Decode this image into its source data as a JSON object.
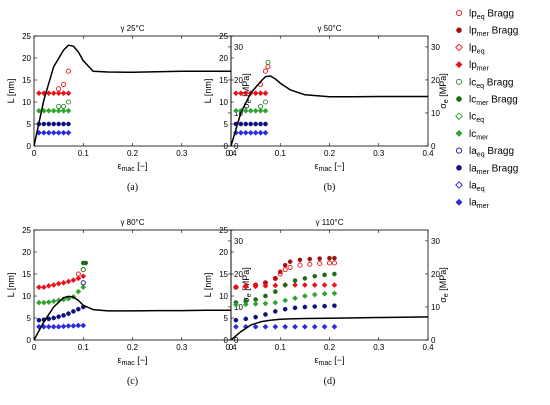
{
  "legend": [
    {
      "main": "lp",
      "sub": "eq",
      "suffix": " Bragg",
      "color": "#e8141a",
      "marker": "circle-open"
    },
    {
      "main": "lp",
      "sub": "mer",
      "suffix": " Bragg",
      "color": "#9a1414",
      "marker": "circle-filled"
    },
    {
      "main": "lp",
      "sub": "eq",
      "suffix": "",
      "color": "#e8141a",
      "marker": "diamond-open"
    },
    {
      "main": "lp",
      "sub": "mer",
      "suffix": "",
      "color": "#e8141a",
      "marker": "diamond-filled"
    },
    {
      "main": "lc",
      "sub": "eq",
      "suffix": " Bragg",
      "color": "#2e8b2e",
      "marker": "circle-open"
    },
    {
      "main": "lc",
      "sub": "mer",
      "suffix": " Bragg",
      "color": "#1a6b1a",
      "marker": "circle-filled"
    },
    {
      "main": "lc",
      "sub": "eq",
      "suffix": "",
      "color": "#2fa52f",
      "marker": "diamond-open"
    },
    {
      "main": "lc",
      "sub": "mer",
      "suffix": "",
      "color": "#2fa52f",
      "marker": "diamond-filled"
    },
    {
      "main": "la",
      "sub": "eq",
      "suffix": " Bragg",
      "color": "#1a1aa0",
      "marker": "circle-open"
    },
    {
      "main": "la",
      "sub": "mer",
      "suffix": " Bragg",
      "color": "#101080",
      "marker": "circle-filled"
    },
    {
      "main": "la",
      "sub": "eq",
      "suffix": "",
      "color": "#2a2ae0",
      "marker": "diamond-open"
    },
    {
      "main": "la",
      "sub": "mer",
      "suffix": "",
      "color": "#2a2ae0",
      "marker": "diamond-filled"
    }
  ],
  "chart_data": [
    {
      "type": "scatter",
      "title": "γ 25°C",
      "caption": "(a)",
      "ylabel": "L [nm]",
      "y2label": {
        "main": "σ",
        "sub": "e",
        "suffix": " [MPa]"
      },
      "xlabel": {
        "main": "ε",
        "sub": "mac",
        "suffix": " [−]"
      },
      "xlim": [
        0,
        0.4
      ],
      "ylim": [
        0,
        25
      ],
      "y2lim": [
        0,
        33.3
      ],
      "xticks": [
        "0",
        "0.1",
        "0.2",
        "0.3",
        "0.4"
      ],
      "yticks": [
        "0",
        "5",
        "10",
        "15",
        "20",
        "25"
      ],
      "y2ticks": [
        "0",
        "10",
        "20",
        "30"
      ],
      "series": [
        {
          "color": "#e8141a",
          "marker": "diamond-filled",
          "x": [
            0.01,
            0.02,
            0.03,
            0.04,
            0.05,
            0.06,
            0.07
          ],
          "y": [
            12,
            12,
            12,
            12,
            12,
            12,
            12
          ]
        },
        {
          "color": "#e8141a",
          "marker": "circle-open",
          "x": [
            0.05,
            0.06,
            0.07
          ],
          "y": [
            13,
            14,
            17
          ]
        },
        {
          "color": "#2fa52f",
          "marker": "diamond-filled",
          "x": [
            0.01,
            0.02,
            0.03,
            0.04,
            0.05,
            0.06,
            0.07
          ],
          "y": [
            8,
            8,
            8,
            8,
            8,
            8,
            8
          ]
        },
        {
          "color": "#2e8b2e",
          "marker": "circle-open",
          "x": [
            0.05,
            0.06,
            0.07
          ],
          "y": [
            9,
            9,
            10
          ]
        },
        {
          "color": "#101080",
          "marker": "circle-filled",
          "x": [
            0.01,
            0.02,
            0.03,
            0.04,
            0.05,
            0.06,
            0.07
          ],
          "y": [
            5,
            5,
            5,
            5,
            5,
            5,
            5
          ]
        },
        {
          "color": "#2a2ae0",
          "marker": "diamond-filled",
          "x": [
            0.01,
            0.02,
            0.03,
            0.04,
            0.05,
            0.06,
            0.07
          ],
          "y": [
            3,
            3,
            3,
            3,
            3,
            3,
            3
          ]
        }
      ],
      "stress_curve": {
        "x": [
          0,
          0.02,
          0.04,
          0.06,
          0.07,
          0.08,
          0.09,
          0.1,
          0.12,
          0.15,
          0.2,
          0.25,
          0.3,
          0.35,
          0.4
        ],
        "y": [
          0,
          14,
          24,
          29,
          30.5,
          30.2,
          28.5,
          25.8,
          22.6,
          22.4,
          22.3,
          22.5,
          22.6,
          22.6,
          22.6
        ]
      }
    },
    {
      "type": "scatter",
      "title": "γ 50°C",
      "caption": "(b)",
      "ylabel": "L [nm]",
      "y2label": {
        "main": "σ",
        "sub": "e",
        "suffix": " [MPa]"
      },
      "xlabel": {
        "main": "ε",
        "sub": "mac",
        "suffix": " [−]"
      },
      "xlim": [
        0,
        0.4
      ],
      "ylim": [
        0,
        25
      ],
      "y2lim": [
        0,
        33.3
      ],
      "xticks": [
        "0",
        "0.1",
        "0.2",
        "0.3",
        "0.4"
      ],
      "yticks": [
        "0",
        "5",
        "10",
        "15",
        "20",
        "25"
      ],
      "y2ticks": [
        "0",
        "10",
        "20",
        "30"
      ],
      "series": [
        {
          "color": "#e8141a",
          "marker": "diamond-filled",
          "x": [
            0.01,
            0.02,
            0.03,
            0.04,
            0.05,
            0.06,
            0.07
          ],
          "y": [
            12,
            12,
            12,
            12,
            12,
            12,
            12
          ]
        },
        {
          "color": "#e8141a",
          "marker": "circle-open",
          "x": [
            0.06,
            0.07,
            0.075
          ],
          "y": [
            14,
            17,
            18
          ]
        },
        {
          "color": "#2fa52f",
          "marker": "diamond-filled",
          "x": [
            0.01,
            0.02,
            0.03,
            0.04,
            0.05,
            0.06,
            0.07
          ],
          "y": [
            8,
            8,
            8,
            8,
            8,
            8,
            8
          ]
        },
        {
          "color": "#2e8b2e",
          "marker": "circle-open",
          "x": [
            0.06,
            0.07,
            0.075
          ],
          "y": [
            9,
            10,
            19
          ]
        },
        {
          "color": "#101080",
          "marker": "circle-filled",
          "x": [
            0.01,
            0.02,
            0.03,
            0.04,
            0.05,
            0.06,
            0.07
          ],
          "y": [
            5,
            5,
            5,
            5,
            5,
            5,
            5
          ]
        },
        {
          "color": "#2a2ae0",
          "marker": "diamond-filled",
          "x": [
            0.01,
            0.02,
            0.03,
            0.04,
            0.05,
            0.06,
            0.07
          ],
          "y": [
            3,
            3,
            3,
            3,
            3,
            3,
            3
          ]
        }
      ],
      "stress_curve": {
        "x": [
          0,
          0.02,
          0.04,
          0.06,
          0.07,
          0.08,
          0.09,
          0.1,
          0.12,
          0.15,
          0.2,
          0.25,
          0.3,
          0.35,
          0.4
        ],
        "y": [
          0,
          10,
          16,
          19.5,
          21,
          21.2,
          20.3,
          19,
          17,
          15.5,
          14.9,
          14.9,
          15,
          15,
          15
        ]
      }
    },
    {
      "type": "scatter",
      "title": "γ 80°C",
      "caption": "(c)",
      "ylabel": "L [nm]",
      "y2label": {
        "main": "σ",
        "sub": "e",
        "suffix": " [MPa]"
      },
      "xlabel": {
        "main": "ε",
        "sub": "mac",
        "suffix": " [−]"
      },
      "xlim": [
        0,
        0.4
      ],
      "ylim": [
        0,
        25
      ],
      "y2lim": [
        0,
        33.3
      ],
      "xticks": [
        "0",
        "0.1",
        "0.2",
        "0.3",
        "0.4"
      ],
      "yticks": [
        "0",
        "5",
        "10",
        "15",
        "20",
        "25"
      ],
      "y2ticks": [
        "0",
        "10",
        "20",
        "30"
      ],
      "series": [
        {
          "color": "#e8141a",
          "marker": "diamond-filled",
          "x": [
            0.01,
            0.02,
            0.03,
            0.04,
            0.05,
            0.06,
            0.07,
            0.08,
            0.09,
            0.1
          ],
          "y": [
            12,
            12,
            12.3,
            12.5,
            12.8,
            13,
            13.3,
            13.6,
            14,
            14.5
          ]
        },
        {
          "color": "#e8141a",
          "marker": "circle-open",
          "x": [
            0.09,
            0.1
          ],
          "y": [
            15,
            16
          ]
        },
        {
          "color": "#2fa52f",
          "marker": "diamond-filled",
          "x": [
            0.01,
            0.02,
            0.03,
            0.04,
            0.05,
            0.06,
            0.07,
            0.08,
            0.09,
            0.1
          ],
          "y": [
            8.5,
            8.5,
            8.6,
            8.8,
            9,
            9.2,
            9.4,
            9.8,
            11,
            12
          ]
        },
        {
          "color": "#1a6b1a",
          "marker": "circle-filled",
          "x": [
            0.1,
            0.105
          ],
          "y": [
            17.5,
            17.5
          ]
        },
        {
          "color": "#2e8b2e",
          "marker": "circle-open",
          "x": [
            0.1
          ],
          "y": [
            16
          ]
        },
        {
          "color": "#101080",
          "marker": "circle-filled",
          "x": [
            0.01,
            0.02,
            0.03,
            0.04,
            0.05,
            0.06,
            0.07,
            0.08,
            0.09,
            0.1
          ],
          "y": [
            4.5,
            4.6,
            4.8,
            5,
            5.3,
            5.6,
            6,
            6.5,
            7,
            7.5
          ]
        },
        {
          "color": "#101080",
          "marker": "circle-open",
          "x": [
            0.1
          ],
          "y": [
            13
          ]
        },
        {
          "color": "#2a2ae0",
          "marker": "diamond-filled",
          "x": [
            0.01,
            0.02,
            0.03,
            0.04,
            0.05,
            0.06,
            0.07,
            0.08,
            0.09,
            0.1
          ],
          "y": [
            3,
            3,
            3,
            3,
            3,
            3.1,
            3.2,
            3.2,
            3.3,
            3.3
          ]
        }
      ],
      "stress_curve": {
        "x": [
          0,
          0.02,
          0.04,
          0.06,
          0.07,
          0.08,
          0.09,
          0.1,
          0.12,
          0.15,
          0.2,
          0.25,
          0.3,
          0.35,
          0.4
        ],
        "y": [
          0,
          5.5,
          10,
          12.8,
          13.2,
          13,
          12,
          10.5,
          9.2,
          8.8,
          8.8,
          8.9,
          8.9,
          9,
          9
        ]
      }
    },
    {
      "type": "scatter",
      "title": "γ 110°C",
      "caption": "(d)",
      "ylabel": "L [nm]",
      "y2label": {
        "main": "σ",
        "sub": "e",
        "suffix": " [MPa]"
      },
      "xlabel": {
        "main": "ε",
        "sub": "mac",
        "suffix": " [−]"
      },
      "xlim": [
        0,
        0.4
      ],
      "ylim": [
        0,
        25
      ],
      "y2lim": [
        0,
        33.3
      ],
      "xticks": [
        "0",
        "0.1",
        "0.2",
        "0.3",
        "0.4"
      ],
      "yticks": [
        "0",
        "5",
        "10",
        "15",
        "20",
        "25"
      ],
      "y2ticks": [
        "0",
        "10",
        "20",
        "30"
      ],
      "series": [
        {
          "color": "#9a1414",
          "marker": "circle-filled",
          "x": [
            0.01,
            0.03,
            0.05,
            0.07,
            0.09,
            0.1,
            0.11,
            0.12,
            0.14,
            0.16,
            0.18,
            0.2,
            0.21
          ],
          "y": [
            12,
            12.2,
            12.5,
            13,
            14,
            15.5,
            17,
            17.8,
            18.2,
            18.4,
            18.5,
            18.6,
            18.6
          ]
        },
        {
          "color": "#e8141a",
          "marker": "circle-open",
          "x": [
            0.01,
            0.03,
            0.05,
            0.07,
            0.09,
            0.1,
            0.11,
            0.12,
            0.14,
            0.16,
            0.18,
            0.2,
            0.21
          ],
          "y": [
            12,
            12.2,
            12.5,
            13,
            14,
            15,
            16,
            16.5,
            17,
            17.2,
            17.4,
            17.5,
            17.5
          ]
        },
        {
          "color": "#e8141a",
          "marker": "diamond-filled",
          "x": [
            0.01,
            0.03,
            0.05,
            0.07,
            0.09,
            0.11,
            0.13,
            0.15,
            0.17,
            0.19,
            0.21
          ],
          "y": [
            12,
            12.1,
            12.2,
            12.3,
            12.4,
            12.5,
            12.5,
            12.5,
            12.5,
            12.5,
            12.5
          ]
        },
        {
          "color": "#1a6b1a",
          "marker": "circle-filled",
          "x": [
            0.01,
            0.03,
            0.05,
            0.07,
            0.09,
            0.11,
            0.13,
            0.15,
            0.17,
            0.19,
            0.21
          ],
          "y": [
            8.5,
            8.8,
            9.2,
            10,
            11,
            12.5,
            13.5,
            14,
            14.5,
            14.8,
            15
          ]
        },
        {
          "color": "#2fa52f",
          "marker": "diamond-filled",
          "x": [
            0.01,
            0.03,
            0.05,
            0.07,
            0.09,
            0.11,
            0.13,
            0.15,
            0.17,
            0.19,
            0.21
          ],
          "y": [
            8,
            8.1,
            8.2,
            8.3,
            8.5,
            9,
            9.5,
            10,
            10.3,
            10.5,
            10.6
          ]
        },
        {
          "color": "#101080",
          "marker": "circle-filled",
          "x": [
            0.01,
            0.03,
            0.05,
            0.07,
            0.09,
            0.11,
            0.13,
            0.15,
            0.17,
            0.19,
            0.21
          ],
          "y": [
            4.5,
            4.8,
            5.2,
            5.8,
            6.5,
            7,
            7.3,
            7.5,
            7.6,
            7.7,
            7.8
          ]
        },
        {
          "color": "#2a2ae0",
          "marker": "diamond-filled",
          "x": [
            0.01,
            0.03,
            0.05,
            0.07,
            0.09,
            0.11,
            0.13,
            0.15,
            0.17,
            0.19,
            0.21
          ],
          "y": [
            3,
            3,
            3,
            3,
            3,
            3,
            3,
            3,
            3,
            3,
            3
          ]
        }
      ],
      "stress_curve": {
        "x": [
          0,
          0.02,
          0.04,
          0.06,
          0.08,
          0.1,
          0.12,
          0.15,
          0.2,
          0.25,
          0.3,
          0.35,
          0.4
        ],
        "y": [
          0,
          2.5,
          4.5,
          5.5,
          6,
          6.3,
          6.4,
          6.5,
          6.6,
          6.7,
          6.8,
          6.9,
          7
        ]
      }
    }
  ]
}
